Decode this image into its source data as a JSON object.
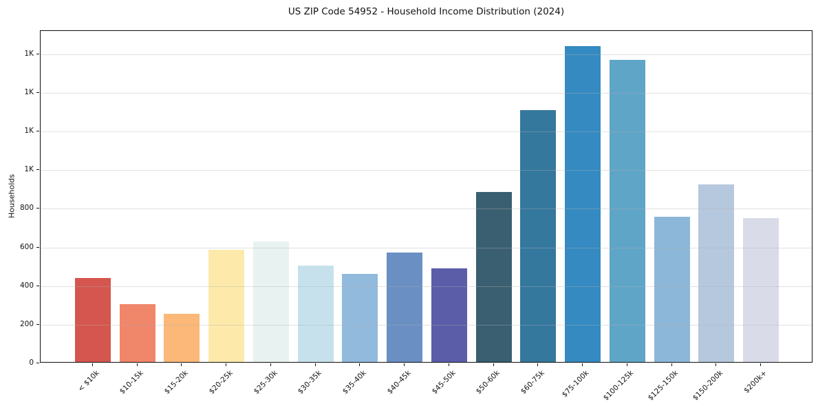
{
  "chart_data": {
    "type": "bar",
    "title": "US ZIP Code 54952 - Household Income Distribution (2024)",
    "xlabel": "",
    "ylabel": "Households",
    "categories": [
      "< $10k",
      "$10-15k",
      "$15-20k",
      "$20-25k",
      "$25-30k",
      "$30-35k",
      "$35-40k",
      "$40-45k",
      "$45-50k",
      "$50-60k",
      "$60-75k",
      "$75-100k",
      "$100-125k",
      "$125-150k",
      "$150-200k",
      "$200k+"
    ],
    "values": [
      435,
      300,
      250,
      580,
      625,
      500,
      455,
      565,
      485,
      880,
      1305,
      1635,
      1565,
      750,
      920,
      745
    ],
    "bar_colors": [
      "#d4564e",
      "#f0866a",
      "#fbb878",
      "#fdeaaa",
      "#e8f2f1",
      "#c6e1ec",
      "#92badc",
      "#6a8fc3",
      "#5c5da9",
      "#3a5f71",
      "#35789e",
      "#358ac1",
      "#5fa5c8",
      "#8db7d8",
      "#b6c8de",
      "#d9dbe8"
    ],
    "ylim": [
      0,
      1720
    ],
    "yticks": [
      {
        "value": 0,
        "label": "0"
      },
      {
        "value": 200,
        "label": "200"
      },
      {
        "value": 400,
        "label": "400"
      },
      {
        "value": 600,
        "label": "600"
      },
      {
        "value": 800,
        "label": "800"
      },
      {
        "value": 1000,
        "label": "1K"
      },
      {
        "value": 1200,
        "label": "1K"
      },
      {
        "value": 1400,
        "label": "1K"
      },
      {
        "value": 1600,
        "label": "1K"
      }
    ],
    "grid": "horizontal-over-bars",
    "legend": "none",
    "x_tick_rotation_deg": 45
  }
}
